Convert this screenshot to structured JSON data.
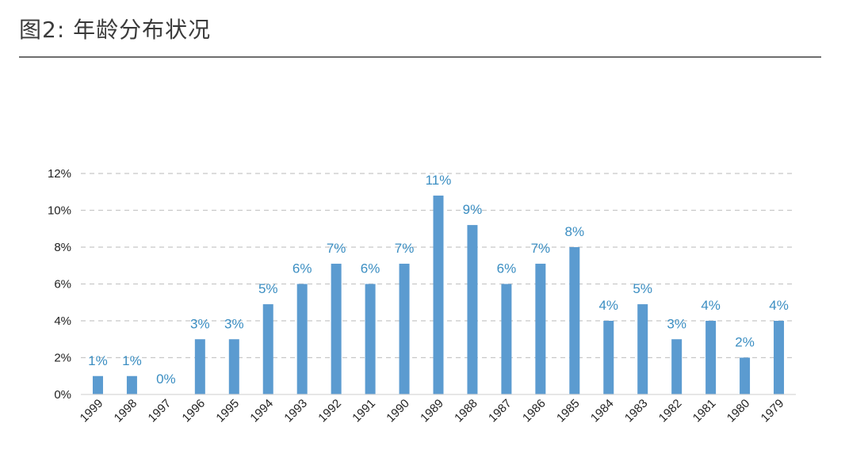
{
  "header": {
    "title": "图2: 年龄分布状况"
  },
  "chart_data": {
    "type": "bar",
    "categories": [
      "1999",
      "1998",
      "1997",
      "1996",
      "1995",
      "1994",
      "1993",
      "1992",
      "1991",
      "1990",
      "1989",
      "1988",
      "1987",
      "1986",
      "1985",
      "1984",
      "1983",
      "1982",
      "1981",
      "1980",
      "1979"
    ],
    "values": [
      1.0,
      1.0,
      0.0,
      3.0,
      3.0,
      4.9,
      6.0,
      7.1,
      6.0,
      7.1,
      10.8,
      9.2,
      6.0,
      7.1,
      8.0,
      4.0,
      4.9,
      3.0,
      4.0,
      2.0,
      4.0
    ],
    "data_labels": [
      "1%",
      "1%",
      "0%",
      "3%",
      "3%",
      "5%",
      "6%",
      "7%",
      "6%",
      "7%",
      "11%",
      "9%",
      "6%",
      "7%",
      "8%",
      "4%",
      "5%",
      "3%",
      "4%",
      "2%",
      "4%"
    ],
    "ylim": [
      0,
      12
    ],
    "yticks": [
      0,
      2,
      4,
      6,
      8,
      10,
      12
    ],
    "ytick_labels": [
      "0%",
      "2%",
      "4%",
      "6%",
      "8%",
      "10%",
      "12%"
    ],
    "xlabel": "",
    "ylabel": "",
    "grid": true,
    "bar_color": "#5b9bd0",
    "label_color": "#3b8ec2"
  }
}
